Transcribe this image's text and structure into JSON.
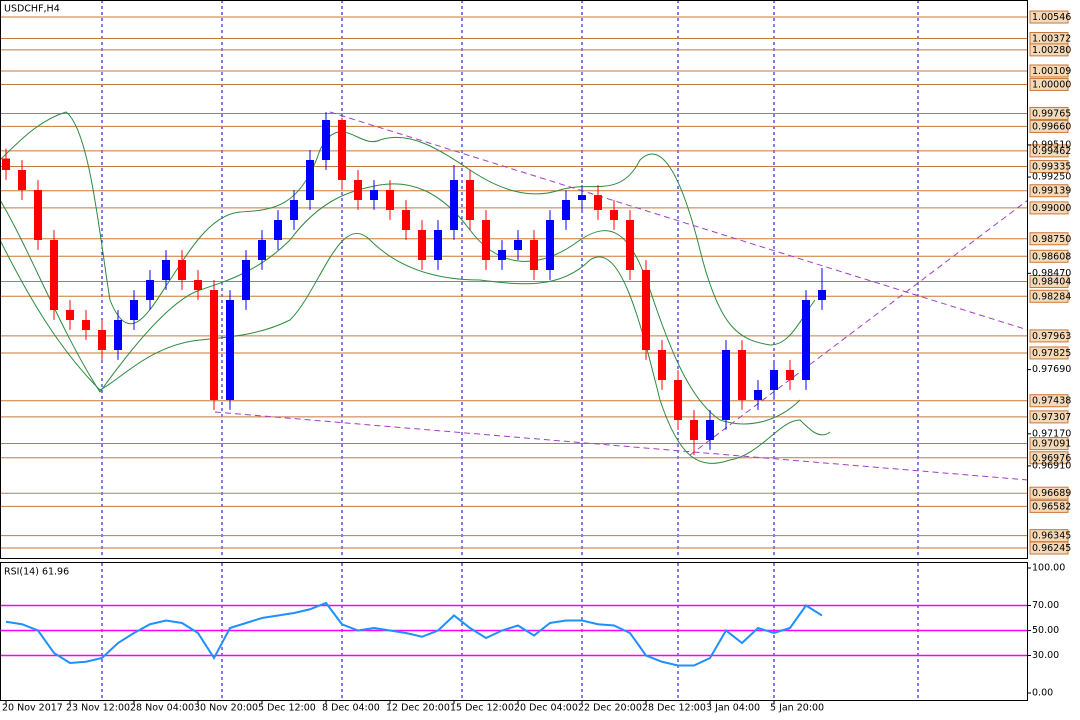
{
  "chart_data": [
    {
      "type": "candlestick",
      "title": "USDCHF,H4",
      "categories": [
        "20 Nov 2017",
        null,
        null,
        null,
        "23 Nov 12:00",
        null,
        null,
        null,
        "28 Nov 04:00",
        null,
        null,
        null,
        "30 Nov 20:00",
        null,
        null,
        null,
        "5 Dec 12:00",
        null,
        null,
        null,
        "8 Dec 04:00",
        null,
        null,
        null,
        "12 Dec 20:00",
        null,
        null,
        null,
        "15 Dec 12:00",
        null,
        null,
        null,
        "20 Dec 04:00",
        null,
        null,
        null,
        "22 Dec 20:00",
        null,
        null,
        null,
        "28 Dec 12:00",
        null,
        null,
        null,
        "3 Jan 04:00",
        null,
        null,
        null,
        "5 Jan 20:00",
        null,
        null,
        null
      ],
      "open": [
        0.994,
        0.99307,
        0.99145,
        0.9874,
        0.98173,
        0.98092,
        0.98011,
        0.97849,
        0.98092,
        0.98254,
        0.98416,
        0.98578,
        0.98416,
        0.98335,
        0.97444,
        0.98254,
        0.98578,
        0.9874,
        0.98902,
        0.99064,
        0.99388,
        0.99712,
        0.99226,
        0.99064,
        0.99145,
        0.98983,
        0.98821,
        0.98578,
        0.98821,
        0.99226,
        0.98902,
        0.98578,
        0.98659,
        0.9874,
        0.98497,
        0.98902,
        0.99064,
        0.99104,
        0.98983,
        0.98902,
        0.98497,
        0.97849,
        0.97606,
        0.97282,
        0.9712,
        0.97282,
        0.97849,
        0.97444,
        0.97525,
        0.97687,
        0.97606,
        0.98254
      ],
      "high": [
        0.9948,
        0.99387,
        0.99225,
        0.9882,
        0.98253,
        0.98172,
        0.98091,
        0.98172,
        0.98334,
        0.98496,
        0.98658,
        0.98658,
        0.98496,
        0.98415,
        0.98334,
        0.98658,
        0.9882,
        0.98982,
        0.99144,
        0.99468,
        0.99776,
        0.9973,
        0.99306,
        0.99225,
        0.99225,
        0.99063,
        0.98901,
        0.98901,
        0.99347,
        0.99306,
        0.98982,
        0.98739,
        0.9882,
        0.9882,
        0.98982,
        0.99144,
        0.99184,
        0.99184,
        0.99063,
        0.98982,
        0.98577,
        0.97929,
        0.97686,
        0.97362,
        0.97362,
        0.97929,
        0.97929,
        0.97605,
        0.97767,
        0.97767,
        0.98334,
        0.98513
      ],
      "low": [
        0.99227,
        0.99065,
        0.9866,
        0.98093,
        0.98012,
        0.97931,
        0.97769,
        0.97769,
        0.98012,
        0.98174,
        0.98336,
        0.98336,
        0.98255,
        0.97363,
        0.97364,
        0.98174,
        0.98498,
        0.9866,
        0.98822,
        0.98984,
        0.99308,
        0.99146,
        0.98984,
        0.98984,
        0.98903,
        0.98741,
        0.98498,
        0.98498,
        0.98741,
        0.98822,
        0.98498,
        0.98498,
        0.98579,
        0.98417,
        0.98417,
        0.98822,
        0.98984,
        0.98903,
        0.98822,
        0.98417,
        0.97769,
        0.97526,
        0.97202,
        0.96998,
        0.9704,
        0.97202,
        0.97364,
        0.97364,
        0.97445,
        0.97526,
        0.97526,
        0.98174
      ],
      "close": [
        0.99307,
        0.99145,
        0.9874,
        0.98173,
        0.98092,
        0.98011,
        0.97849,
        0.98092,
        0.98254,
        0.98416,
        0.98578,
        0.98416,
        0.98335,
        0.97444,
        0.98254,
        0.98578,
        0.9874,
        0.98902,
        0.99064,
        0.99388,
        0.99712,
        0.99226,
        0.99064,
        0.99145,
        0.98983,
        0.98821,
        0.98578,
        0.98821,
        0.99226,
        0.98902,
        0.98578,
        0.98659,
        0.9874,
        0.98497,
        0.98902,
        0.99064,
        0.99104,
        0.98983,
        0.98902,
        0.98497,
        0.97849,
        0.97606,
        0.97282,
        0.9712,
        0.97282,
        0.97849,
        0.97444,
        0.97525,
        0.97687,
        0.97606,
        0.98254,
        0.98335
      ],
      "up_color": "#0000ff",
      "down_color": "#ff0000",
      "ylim": [
        0.96164,
        1.00684
      ],
      "yticks": [
        {
          "value": 0.9951,
          "label": "0.99510"
        },
        {
          "value": 0.9925,
          "label": "0.99250"
        },
        {
          "value": 0.9847,
          "label": "0.98470"
        },
        {
          "value": 0.9769,
          "label": "0.97690"
        },
        {
          "value": 0.9717,
          "label": "0.97170"
        },
        {
          "value": 0.9691,
          "label": "0.96910"
        }
      ],
      "levels": [
        1.00546,
        1.00372,
        {
          "value": 1.0028,
          "label": "1.00280"
        },
        1.00109,
        {
          "value": 1.0,
          "label": "1.00000"
        },
        0.99765,
        {
          "value": 0.9966,
          "label": "0.99660"
        },
        0.99462,
        0.99335,
        0.99139,
        {
          "value": 0.99,
          "label": "0.99000"
        },
        {
          "value": 0.9875,
          "label": "0.98750"
        },
        0.98608,
        0.98404,
        0.98284,
        0.97963,
        0.97825,
        0.97438,
        0.97307,
        0.97091,
        0.96976,
        0.96689,
        0.96582,
        0.96345,
        0.96245
      ],
      "level_color": "#c8783a"
    },
    {
      "type": "line",
      "title": "RSI(14) 61.96",
      "color": "#1e90ff",
      "values": [
        57,
        55,
        50,
        32,
        24,
        25,
        28,
        40,
        48,
        55,
        58,
        56,
        48,
        28,
        52,
        56,
        60,
        62,
        64,
        67,
        72,
        55,
        50,
        52,
        50,
        48,
        45,
        50,
        62,
        52,
        44,
        50,
        54,
        46,
        56,
        58,
        58,
        55,
        54,
        48,
        30,
        25,
        22,
        22,
        28,
        50,
        40,
        52,
        48,
        52,
        70,
        62
      ],
      "ylim": [
        -5.6,
        104
      ],
      "yticks": [
        {
          "value": 100,
          "label": "100.00"
        },
        {
          "value": 70,
          "label": "70.00"
        },
        {
          "value": 50,
          "label": "50.00"
        },
        {
          "value": 30,
          "label": "30.00"
        },
        {
          "value": 0,
          "label": "0.00"
        }
      ],
      "levels": [
        70,
        50,
        30
      ],
      "level_color": "#ff00ff"
    }
  ]
}
